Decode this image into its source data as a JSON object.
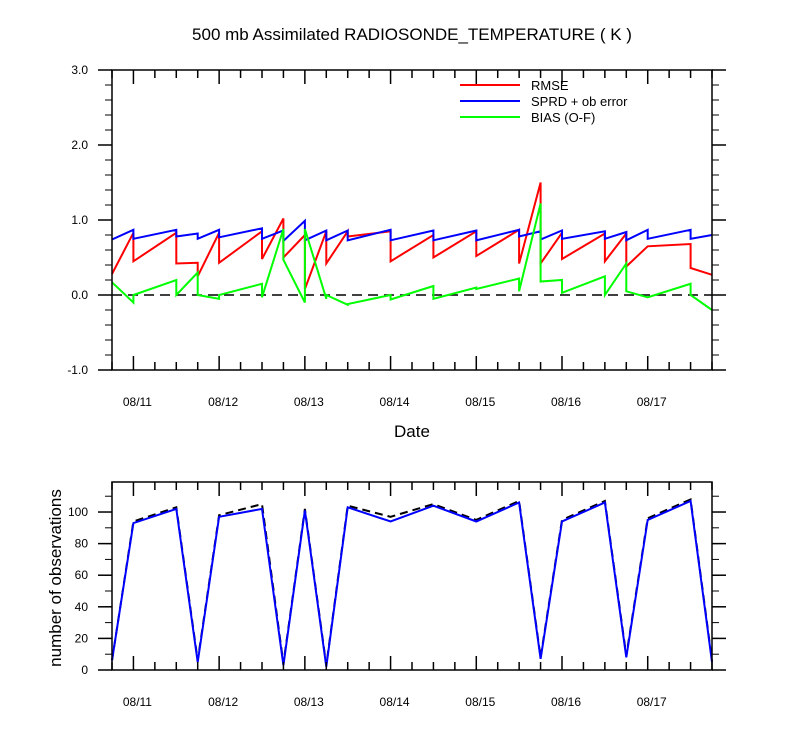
{
  "title": "500 mb Assimilated RADIOSONDE_TEMPERATURE ( K )",
  "x_axis_label": "Date",
  "y_axis_label_bottom": "number of observations",
  "colors": {
    "rmse": "#ff0000",
    "spread": "#0000ff",
    "bias": "#00ff00",
    "count_used": "#0000ff",
    "count_possible": "#000000",
    "zero_line": "#000000"
  },
  "chart_data": [
    {
      "type": "line",
      "title": "500 mb Assimilated RADIOSONDE_TEMPERATURE ( K )",
      "xlabel": "Date",
      "ylabel": "",
      "x_unit": "hours",
      "xlim": [
        0,
        168
      ],
      "ylim": [
        -1.0,
        3.0
      ],
      "yticks": [
        -1.0,
        0.0,
        1.0,
        2.0,
        3.0
      ],
      "ytick_labels": [
        "-1.0",
        "0.0",
        "1.0",
        "2.0",
        "3.0"
      ],
      "xtick_labels": [
        "08/11",
        "08/12",
        "08/13",
        "08/14",
        "08/15",
        "08/16",
        "08/17"
      ],
      "xtick_positions": [
        6,
        30,
        54,
        78,
        102,
        126,
        150
      ],
      "legend_position": "top-right",
      "reference_line": {
        "y": 0,
        "style": "dashed"
      },
      "series": [
        {
          "name": "RMSE",
          "color": "#ff0000",
          "x": [
            0,
            6,
            6,
            18,
            18,
            24,
            24,
            30,
            30,
            42,
            42,
            48,
            48,
            54,
            54,
            60,
            60,
            66,
            66,
            78,
            78,
            90,
            90,
            102,
            102,
            114,
            114,
            120,
            120,
            126,
            126,
            138,
            138,
            144,
            144,
            150,
            150,
            162,
            162,
            168
          ],
          "y": [
            0.28,
            0.83,
            0.45,
            0.83,
            0.42,
            0.43,
            0.25,
            0.83,
            0.43,
            0.85,
            0.48,
            1.02,
            0.5,
            0.8,
            0.08,
            0.85,
            0.42,
            0.85,
            0.78,
            0.85,
            0.45,
            0.8,
            0.5,
            0.85,
            0.52,
            0.87,
            0.42,
            1.5,
            0.42,
            0.83,
            0.48,
            0.82,
            0.45,
            0.82,
            0.38,
            0.65,
            0.65,
            0.68,
            0.36,
            0.27
          ]
        },
        {
          "name": "SPRD + ob error",
          "color": "#0000ff",
          "x": [
            0,
            6,
            6,
            18,
            18,
            24,
            24,
            30,
            30,
            42,
            42,
            48,
            48,
            54,
            54,
            60,
            60,
            66,
            66,
            78,
            78,
            90,
            90,
            102,
            102,
            114,
            114,
            120,
            120,
            126,
            126,
            138,
            138,
            144,
            144,
            150,
            150,
            162,
            162,
            168
          ],
          "y": [
            0.74,
            0.87,
            0.75,
            0.87,
            0.78,
            0.82,
            0.75,
            0.87,
            0.77,
            0.89,
            0.75,
            0.86,
            0.72,
            0.99,
            0.73,
            0.86,
            0.73,
            0.86,
            0.73,
            0.87,
            0.73,
            0.86,
            0.73,
            0.86,
            0.73,
            0.87,
            0.78,
            0.85,
            0.74,
            0.86,
            0.75,
            0.85,
            0.75,
            0.84,
            0.73,
            0.87,
            0.75,
            0.87,
            0.75,
            0.8
          ]
        },
        {
          "name": "BIAS (O-F)",
          "color": "#00ff00",
          "x": [
            0,
            6,
            6,
            18,
            18,
            24,
            24,
            30,
            30,
            42,
            42,
            48,
            48,
            54,
            54,
            60,
            60,
            66,
            66,
            78,
            78,
            90,
            90,
            102,
            102,
            114,
            114,
            120,
            120,
            126,
            126,
            138,
            138,
            144,
            144,
            150,
            150,
            162,
            162,
            168
          ],
          "y": [
            0.17,
            -0.1,
            0.0,
            0.2,
            0.0,
            0.3,
            0.0,
            -0.05,
            0.0,
            0.15,
            -0.03,
            0.88,
            0.47,
            -0.1,
            0.88,
            -0.05,
            0.0,
            -0.13,
            -0.12,
            0.0,
            -0.06,
            0.12,
            -0.05,
            0.1,
            0.08,
            0.22,
            0.05,
            1.22,
            0.18,
            0.2,
            0.03,
            0.25,
            0.0,
            0.42,
            0.05,
            -0.03,
            -0.03,
            0.15,
            0.0,
            -0.2
          ]
        }
      ]
    },
    {
      "type": "line",
      "title": "",
      "xlabel": "",
      "ylabel": "number of observations",
      "x_unit": "hours",
      "xlim": [
        0,
        168
      ],
      "ylim": [
        0,
        119
      ],
      "yticks": [
        0,
        20,
        40,
        60,
        80,
        100
      ],
      "ytick_labels": [
        "0",
        "20",
        "40",
        "60",
        "80",
        "100"
      ],
      "xtick_labels": [
        "08/11",
        "08/12",
        "08/13",
        "08/14",
        "08/15",
        "08/16",
        "08/17"
      ],
      "xtick_positions": [
        6,
        30,
        54,
        78,
        102,
        126,
        150
      ],
      "series": [
        {
          "role": "observations possible",
          "color": "#000000",
          "style": "dashed",
          "x": [
            0,
            6,
            18,
            24,
            30,
            42,
            48,
            54,
            60,
            66,
            78,
            90,
            102,
            114,
            120,
            126,
            138,
            144,
            150,
            162,
            168
          ],
          "y": [
            6,
            94,
            103,
            6,
            98,
            105,
            4,
            102,
            3,
            104,
            97,
            105,
            95,
            107,
            8,
            95,
            107,
            9,
            96,
            108,
            6
          ]
        },
        {
          "role": "observations used",
          "color": "#0000ff",
          "style": "solid",
          "x": [
            0,
            6,
            18,
            24,
            30,
            42,
            48,
            54,
            60,
            66,
            78,
            90,
            102,
            114,
            120,
            126,
            138,
            144,
            150,
            162,
            168
          ],
          "y": [
            6,
            93,
            102,
            5,
            97,
            102,
            3,
            101,
            2,
            103,
            94,
            104,
            94,
            106,
            7,
            94,
            106,
            8,
            95,
            107,
            5
          ]
        }
      ]
    }
  ]
}
